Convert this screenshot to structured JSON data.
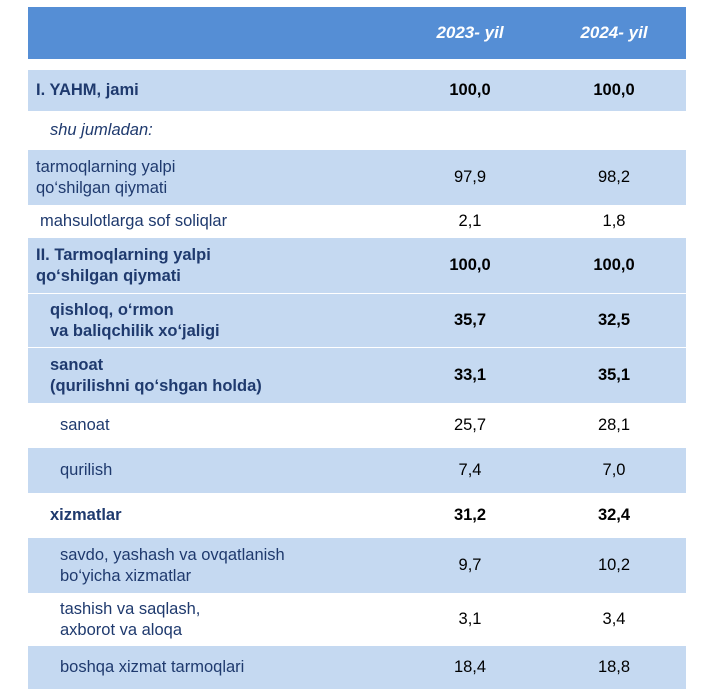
{
  "header": {
    "col1": "2023- yil",
    "col2": "2024- yil"
  },
  "rows": [
    {
      "label1": "I. YAHM, jami",
      "label2": "",
      "v1": "100,0",
      "v2": "100,0"
    },
    {
      "label1": "shu jumladan:",
      "label2": "",
      "v1": "",
      "v2": ""
    },
    {
      "label1": "tarmoqlarning yalpi",
      "label2": "qo‘shilgan qiymati",
      "v1": "97,9",
      "v2": "98,2"
    },
    {
      "label1": "mahsulotlarga sof soliqlar",
      "label2": "",
      "v1": "2,1",
      "v2": "1,8"
    },
    {
      "label1": "II. Tarmoqlarning yalpi",
      "label2": "qo‘shilgan qiymati",
      "v1": "100,0",
      "v2": "100,0"
    },
    {
      "label1": "qishloq, o‘rmon",
      "label2": "va baliqchilik xo‘jaligi",
      "v1": "35,7",
      "v2": "32,5"
    },
    {
      "label1": "sanoat",
      "label2": "(qurilishni qo‘shgan holda)",
      "v1": "33,1",
      "v2": "35,1"
    },
    {
      "label1": "sanoat",
      "label2": "",
      "v1": "25,7",
      "v2": "28,1"
    },
    {
      "label1": "qurilish",
      "label2": "",
      "v1": "7,4",
      "v2": "7,0"
    },
    {
      "label1": "xizmatlar",
      "label2": "",
      "v1": "31,2",
      "v2": "32,4"
    },
    {
      "label1": "savdo, yashash va ovqatlanish",
      "label2": "bo‘yicha xizmatlar",
      "v1": "9,7",
      "v2": "10,2"
    },
    {
      "label1": "tashish va saqlash,",
      "label2": "axborot va aloqa",
      "v1": "3,1",
      "v2": "3,4"
    },
    {
      "label1": "boshqa xizmat tarmoqlari",
      "label2": "",
      "v1": "18,4",
      "v2": "18,8"
    }
  ],
  "colors": {
    "header": "#558ed5",
    "band": "#c5d9f1",
    "label_text": "#1f3a6e"
  }
}
